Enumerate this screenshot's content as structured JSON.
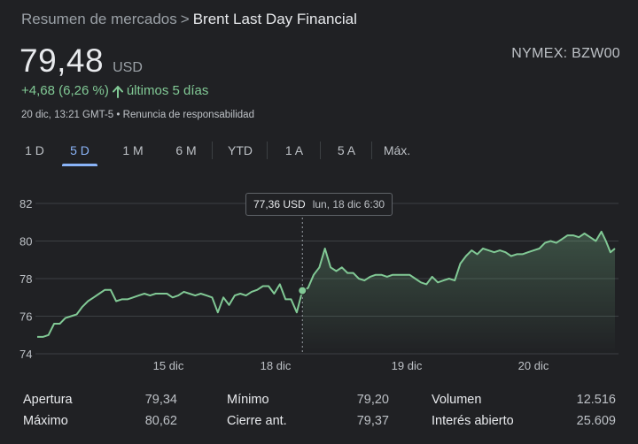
{
  "breadcrumb": {
    "parent": "Resumen de mercados",
    "separator": ">",
    "current": "Brent Last Day Financial"
  },
  "quote": {
    "price": "79,48",
    "currency": "USD",
    "ticker": "NYMEX: BZW00",
    "change": "+4,68 (6,26 %)",
    "change_icon": "arrow-up-icon",
    "period": "últimos 5 días",
    "timestamp": "20 dic, 13:21 GMT-5",
    "bullet": "•",
    "disclaimer": "Renuncia de responsabilidad"
  },
  "tabs": [
    {
      "label": "1 D",
      "active": false
    },
    {
      "label": "5 D",
      "active": true
    },
    {
      "label": "1 M",
      "active": false
    },
    {
      "label": "6 M",
      "active": false
    },
    {
      "label": "YTD",
      "active": false
    },
    {
      "label": "1 A",
      "active": false
    },
    {
      "label": "5 A",
      "active": false
    },
    {
      "label": "Máx.",
      "active": false
    }
  ],
  "tooltip": {
    "value": "77,36 USD",
    "date": "lun, 18 dic 6:30"
  },
  "colors": {
    "line": "#81c995",
    "grid": "#3c4043",
    "background": "#202124",
    "active_tab": "#8ab4f8"
  },
  "chart_data": {
    "type": "area",
    "y_ticks": [
      "74",
      "76",
      "78",
      "80",
      "82"
    ],
    "x_ticks": [
      "15 dic",
      "18 dic",
      "19 dic",
      "20 dic"
    ],
    "ylim": [
      74,
      82
    ],
    "grid": true,
    "highlight": {
      "x": 2.35,
      "y": 77.36
    },
    "series": [
      {
        "x": [
          0.0,
          0.05,
          0.1,
          0.15,
          0.2,
          0.25,
          0.3,
          0.35,
          0.4,
          0.45,
          0.5,
          0.55,
          0.6,
          0.65,
          0.7,
          0.75,
          0.8,
          0.85,
          0.9,
          0.95,
          1.0,
          1.05,
          1.1,
          1.15,
          1.2,
          1.25,
          1.3,
          1.35,
          1.4,
          1.45,
          1.5,
          1.55,
          1.6,
          1.65,
          1.7,
          1.75,
          1.8,
          1.85,
          1.9,
          1.95,
          2.0,
          2.05,
          2.1,
          2.15,
          2.2,
          2.25,
          2.3,
          2.35,
          2.4,
          2.45,
          2.5,
          2.55,
          2.6,
          2.65,
          2.7,
          2.75,
          2.8,
          2.85,
          2.9,
          2.95,
          3.0,
          3.05,
          3.1,
          3.15,
          3.2,
          3.25,
          3.3,
          3.35,
          3.4,
          3.45,
          3.5,
          3.55,
          3.6,
          3.65,
          3.7,
          3.75,
          3.8,
          3.85,
          3.9,
          3.95,
          4.0,
          4.05,
          4.1,
          4.15,
          4.2,
          4.25,
          4.3,
          4.35,
          4.4,
          4.45,
          4.5,
          4.55,
          4.6,
          4.65,
          4.7,
          4.75,
          4.8,
          4.85,
          4.9,
          4.95,
          5.0,
          5.04,
          5.08,
          5.12
        ],
        "values": [
          74.9,
          74.9,
          75.0,
          75.6,
          75.6,
          75.9,
          76.0,
          76.1,
          76.5,
          76.8,
          77.0,
          77.2,
          77.4,
          77.4,
          76.8,
          76.9,
          76.9,
          77.0,
          77.1,
          77.2,
          77.1,
          77.2,
          77.2,
          77.2,
          77.0,
          77.1,
          77.3,
          77.2,
          77.1,
          77.2,
          77.1,
          77.0,
          76.2,
          77.0,
          76.6,
          77.1,
          77.2,
          77.1,
          77.3,
          77.4,
          77.6,
          77.6,
          77.2,
          77.7,
          76.9,
          76.9,
          76.2,
          77.36,
          77.5,
          78.2,
          78.6,
          79.6,
          78.6,
          78.4,
          78.6,
          78.3,
          78.3,
          78.0,
          77.9,
          78.1,
          78.2,
          78.2,
          78.1,
          78.2,
          78.2,
          78.2,
          78.2,
          78.0,
          77.8,
          77.7,
          78.1,
          77.8,
          77.9,
          78.0,
          77.9,
          78.8,
          79.2,
          79.5,
          79.3,
          79.6,
          79.5,
          79.4,
          79.5,
          79.4,
          79.2,
          79.3,
          79.3,
          79.4,
          79.5,
          79.6,
          79.9,
          80.0,
          79.9,
          80.1,
          80.3,
          80.3,
          80.2,
          80.4,
          80.2,
          80.0,
          80.5,
          80.0,
          79.4,
          79.6
        ]
      }
    ]
  },
  "stats": [
    [
      {
        "label": "Apertura",
        "value": "79,34"
      },
      {
        "label": "Mínimo",
        "value": "79,20"
      },
      {
        "label": "Volumen",
        "value": "12.516"
      }
    ],
    [
      {
        "label": "Máximo",
        "value": "80,62"
      },
      {
        "label": "Cierre ant.",
        "value": "79,37"
      },
      {
        "label": "Interés abierto",
        "value": "25.609"
      }
    ]
  ]
}
